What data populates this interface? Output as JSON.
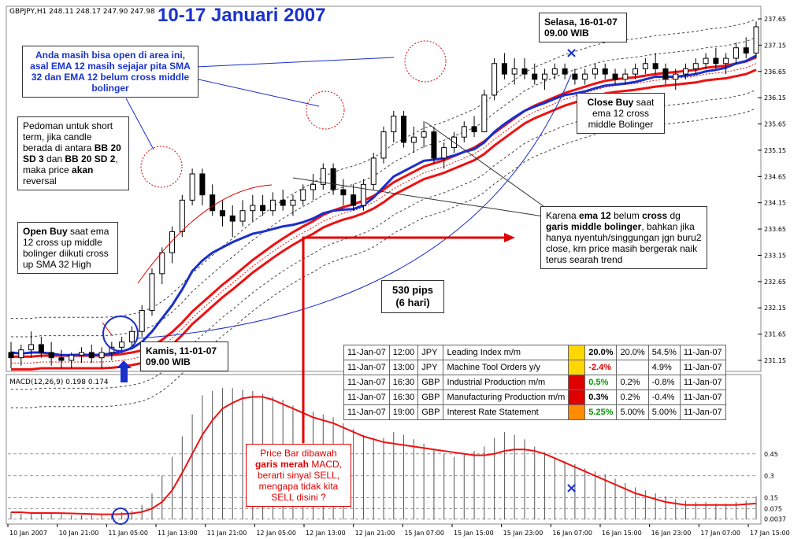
{
  "chart_data": [
    {
      "type": "candlestick",
      "symbol_header": "GBPJPY,H1  248.11 248.17 247.90 247.98",
      "title": "10-17 Januari 2007",
      "price_ticks": [
        "237.65",
        "237.15",
        "236.65",
        "236.15",
        "235.65",
        "235.15",
        "234.65",
        "234.15",
        "233.65",
        "233.15",
        "232.65",
        "232.15",
        "231.65",
        "231.15"
      ],
      "ylim": [
        231.0,
        237.8
      ],
      "candles": [
        {
          "o": 231.3,
          "h": 231.5,
          "l": 231.0,
          "c": 231.2
        },
        {
          "o": 231.2,
          "h": 231.45,
          "l": 231.05,
          "c": 231.35
        },
        {
          "o": 231.35,
          "h": 231.7,
          "l": 231.2,
          "c": 231.45
        },
        {
          "o": 231.45,
          "h": 231.6,
          "l": 231.2,
          "c": 231.3
        },
        {
          "o": 231.3,
          "h": 231.5,
          "l": 231.05,
          "c": 231.2
        },
        {
          "o": 231.2,
          "h": 231.35,
          "l": 231.0,
          "c": 231.15
        },
        {
          "o": 231.15,
          "h": 231.3,
          "l": 231.0,
          "c": 231.25
        },
        {
          "o": 231.25,
          "h": 231.4,
          "l": 231.1,
          "c": 231.3
        },
        {
          "o": 231.3,
          "h": 231.45,
          "l": 231.1,
          "c": 231.2
        },
        {
          "o": 231.2,
          "h": 231.4,
          "l": 231.0,
          "c": 231.3
        },
        {
          "o": 231.3,
          "h": 231.5,
          "l": 231.15,
          "c": 231.4
        },
        {
          "o": 231.4,
          "h": 231.6,
          "l": 231.3,
          "c": 231.5
        },
        {
          "o": 231.5,
          "h": 231.8,
          "l": 231.4,
          "c": 231.7
        },
        {
          "o": 231.7,
          "h": 232.2,
          "l": 231.6,
          "c": 232.1
        },
        {
          "o": 232.1,
          "h": 232.9,
          "l": 232.0,
          "c": 232.8
        },
        {
          "o": 232.8,
          "h": 233.3,
          "l": 232.6,
          "c": 233.2
        },
        {
          "o": 233.2,
          "h": 233.7,
          "l": 233.0,
          "c": 233.6
        },
        {
          "o": 233.6,
          "h": 234.3,
          "l": 233.5,
          "c": 234.2
        },
        {
          "o": 234.2,
          "h": 234.8,
          "l": 234.1,
          "c": 234.7
        },
        {
          "o": 234.7,
          "h": 234.8,
          "l": 234.1,
          "c": 234.3
        },
        {
          "o": 234.3,
          "h": 234.5,
          "l": 233.9,
          "c": 234.0
        },
        {
          "o": 234.0,
          "h": 234.2,
          "l": 233.7,
          "c": 233.9
        },
        {
          "o": 233.9,
          "h": 234.1,
          "l": 233.5,
          "c": 233.8
        },
        {
          "o": 233.8,
          "h": 234.2,
          "l": 233.7,
          "c": 234.0
        },
        {
          "o": 234.0,
          "h": 234.3,
          "l": 233.8,
          "c": 234.1
        },
        {
          "o": 234.1,
          "h": 234.3,
          "l": 233.9,
          "c": 234.0
        },
        {
          "o": 234.0,
          "h": 234.35,
          "l": 233.9,
          "c": 234.2
        },
        {
          "o": 234.2,
          "h": 234.4,
          "l": 234.0,
          "c": 234.1
        },
        {
          "o": 234.1,
          "h": 234.3,
          "l": 233.9,
          "c": 234.2
        },
        {
          "o": 234.2,
          "h": 234.5,
          "l": 234.1,
          "c": 234.4
        },
        {
          "o": 234.4,
          "h": 234.7,
          "l": 234.2,
          "c": 234.5
        },
        {
          "o": 234.5,
          "h": 234.9,
          "l": 234.4,
          "c": 234.8
        },
        {
          "o": 234.8,
          "h": 234.9,
          "l": 234.3,
          "c": 234.4
        },
        {
          "o": 234.4,
          "h": 234.6,
          "l": 234.1,
          "c": 234.3
        },
        {
          "o": 234.3,
          "h": 234.5,
          "l": 234.0,
          "c": 234.1
        },
        {
          "o": 234.1,
          "h": 234.6,
          "l": 234.0,
          "c": 234.5
        },
        {
          "o": 234.5,
          "h": 235.1,
          "l": 234.4,
          "c": 235.0
        },
        {
          "o": 235.0,
          "h": 235.6,
          "l": 234.9,
          "c": 235.5
        },
        {
          "o": 235.5,
          "h": 235.9,
          "l": 235.3,
          "c": 235.8
        },
        {
          "o": 235.8,
          "h": 235.9,
          "l": 235.2,
          "c": 235.3
        },
        {
          "o": 235.3,
          "h": 235.6,
          "l": 235.1,
          "c": 235.4
        },
        {
          "o": 235.4,
          "h": 235.7,
          "l": 235.2,
          "c": 235.5
        },
        {
          "o": 235.5,
          "h": 235.6,
          "l": 234.9,
          "c": 235.0
        },
        {
          "o": 235.0,
          "h": 235.3,
          "l": 234.8,
          "c": 235.2
        },
        {
          "o": 235.2,
          "h": 235.5,
          "l": 235.1,
          "c": 235.4
        },
        {
          "o": 235.4,
          "h": 235.7,
          "l": 235.3,
          "c": 235.6
        },
        {
          "o": 235.6,
          "h": 235.8,
          "l": 235.4,
          "c": 235.5
        },
        {
          "o": 235.5,
          "h": 236.3,
          "l": 235.5,
          "c": 236.2
        },
        {
          "o": 236.2,
          "h": 236.9,
          "l": 236.1,
          "c": 236.8
        },
        {
          "o": 236.8,
          "h": 237.0,
          "l": 236.5,
          "c": 236.6
        },
        {
          "o": 236.6,
          "h": 236.9,
          "l": 236.4,
          "c": 236.7
        },
        {
          "o": 236.7,
          "h": 236.9,
          "l": 236.5,
          "c": 236.6
        },
        {
          "o": 236.6,
          "h": 236.8,
          "l": 236.4,
          "c": 236.5
        },
        {
          "o": 236.5,
          "h": 236.7,
          "l": 236.3,
          "c": 236.6
        },
        {
          "o": 236.6,
          "h": 236.8,
          "l": 236.5,
          "c": 236.7
        },
        {
          "o": 236.7,
          "h": 236.8,
          "l": 236.5,
          "c": 236.6
        },
        {
          "o": 236.6,
          "h": 236.7,
          "l": 236.4,
          "c": 236.5
        },
        {
          "o": 236.5,
          "h": 236.7,
          "l": 236.4,
          "c": 236.6
        },
        {
          "o": 236.6,
          "h": 236.8,
          "l": 236.5,
          "c": 236.7
        },
        {
          "o": 236.7,
          "h": 236.8,
          "l": 236.5,
          "c": 236.6
        },
        {
          "o": 236.6,
          "h": 236.7,
          "l": 236.4,
          "c": 236.5
        },
        {
          "o": 236.5,
          "h": 236.7,
          "l": 236.4,
          "c": 236.6
        },
        {
          "o": 236.6,
          "h": 236.8,
          "l": 236.5,
          "c": 236.7
        },
        {
          "o": 236.7,
          "h": 236.9,
          "l": 236.6,
          "c": 236.8
        },
        {
          "o": 236.8,
          "h": 237.0,
          "l": 236.6,
          "c": 236.7
        },
        {
          "o": 236.7,
          "h": 236.8,
          "l": 236.4,
          "c": 236.5
        },
        {
          "o": 236.5,
          "h": 236.7,
          "l": 236.3,
          "c": 236.6
        },
        {
          "o": 236.6,
          "h": 236.8,
          "l": 236.5,
          "c": 236.7
        },
        {
          "o": 236.7,
          "h": 236.9,
          "l": 236.6,
          "c": 236.8
        },
        {
          "o": 236.8,
          "h": 237.0,
          "l": 236.7,
          "c": 236.9
        },
        {
          "o": 236.9,
          "h": 237.1,
          "l": 236.7,
          "c": 236.8
        },
        {
          "o": 236.8,
          "h": 237.0,
          "l": 236.6,
          "c": 236.9
        },
        {
          "o": 236.9,
          "h": 237.2,
          "l": 236.8,
          "c": 237.1
        },
        {
          "o": 237.1,
          "h": 237.3,
          "l": 236.9,
          "c": 237.0
        },
        {
          "o": 237.0,
          "h": 237.6,
          "l": 236.9,
          "c": 237.5
        }
      ],
      "ema12": [
        231.3,
        231.28,
        231.3,
        231.3,
        231.28,
        231.25,
        231.25,
        231.26,
        231.25,
        231.26,
        231.28,
        231.32,
        231.38,
        231.5,
        231.7,
        231.95,
        232.2,
        232.5,
        232.85,
        233.05,
        233.2,
        233.3,
        233.4,
        233.48,
        233.56,
        233.6,
        233.65,
        233.7,
        233.73,
        233.78,
        233.85,
        233.95,
        234.0,
        234.02,
        234.03,
        234.1,
        234.25,
        234.45,
        234.65,
        234.75,
        234.85,
        234.95,
        234.97,
        235.0,
        235.05,
        235.12,
        235.17,
        235.3,
        235.5,
        235.65,
        235.78,
        235.9,
        235.98,
        236.05,
        236.13,
        236.2,
        236.23,
        236.27,
        236.33,
        236.38,
        236.4,
        236.42,
        236.45,
        236.5,
        236.55,
        236.55,
        236.55,
        236.57,
        236.6,
        236.65,
        236.68,
        236.72,
        236.8,
        236.85,
        236.95
      ],
      "bb_mid": [
        231.1,
        231.1,
        231.1,
        231.12,
        231.12,
        231.12,
        231.12,
        231.12,
        231.12,
        231.12,
        231.13,
        231.15,
        231.18,
        231.22,
        231.3,
        231.42,
        231.57,
        231.75,
        231.96,
        232.13,
        232.3,
        232.47,
        232.62,
        232.78,
        232.94,
        233.08,
        233.22,
        233.35,
        233.47,
        233.58,
        233.68,
        233.8,
        233.88,
        233.95,
        234.0,
        234.07,
        234.16,
        234.28,
        234.42,
        234.52,
        234.62,
        234.72,
        234.78,
        234.84,
        234.92,
        235.0,
        235.08,
        235.2,
        235.36,
        235.5,
        235.64,
        235.78,
        235.88,
        235.96,
        236.04,
        236.12,
        236.18,
        236.24,
        236.3,
        236.35,
        236.38,
        236.4,
        236.42,
        236.45,
        236.48,
        236.5,
        236.52,
        236.54,
        236.56,
        236.6,
        236.62,
        236.64,
        236.68,
        236.72,
        236.8
      ]
    },
    {
      "type": "bar+line",
      "indicator_header": "MACD(12,26,9) 0.198 0.174",
      "macd_ticks": [
        "0.45",
        "0.3",
        "0.15",
        "0.075",
        "0.0037"
      ],
      "ylim": [
        -0.02,
        0.95
      ],
      "histogram": [
        0.05,
        0.04,
        0.04,
        0.05,
        0.04,
        0.04,
        0.03,
        0.03,
        0.03,
        0.03,
        0.04,
        0.05,
        0.06,
        0.1,
        0.18,
        0.3,
        0.43,
        0.57,
        0.72,
        0.85,
        0.88,
        0.9,
        0.9,
        0.89,
        0.88,
        0.86,
        0.84,
        0.82,
        0.78,
        0.76,
        0.74,
        0.72,
        0.7,
        0.66,
        0.62,
        0.58,
        0.56,
        0.56,
        0.6,
        0.58,
        0.55,
        0.52,
        0.48,
        0.45,
        0.43,
        0.45,
        0.47,
        0.5,
        0.56,
        0.6,
        0.58,
        0.55,
        0.5,
        0.46,
        0.42,
        0.4,
        0.38,
        0.35,
        0.33,
        0.31,
        0.28,
        0.25,
        0.22,
        0.2,
        0.18,
        0.16,
        0.14,
        0.13,
        0.12,
        0.12,
        0.11,
        0.11,
        0.12,
        0.13,
        0.16
      ],
      "signal": [
        0.05,
        0.05,
        0.045,
        0.045,
        0.045,
        0.044,
        0.042,
        0.04,
        0.038,
        0.036,
        0.036,
        0.038,
        0.042,
        0.052,
        0.075,
        0.12,
        0.2,
        0.32,
        0.45,
        0.58,
        0.68,
        0.76,
        0.8,
        0.83,
        0.84,
        0.84,
        0.82,
        0.79,
        0.76,
        0.73,
        0.7,
        0.68,
        0.66,
        0.63,
        0.6,
        0.57,
        0.55,
        0.53,
        0.52,
        0.51,
        0.5,
        0.49,
        0.48,
        0.47,
        0.46,
        0.45,
        0.44,
        0.44,
        0.45,
        0.47,
        0.48,
        0.48,
        0.47,
        0.45,
        0.42,
        0.39,
        0.36,
        0.33,
        0.3,
        0.27,
        0.24,
        0.21,
        0.18,
        0.16,
        0.14,
        0.12,
        0.11,
        0.1,
        0.1,
        0.1,
        0.1,
        0.1,
        0.1,
        0.105,
        0.11
      ]
    }
  ],
  "time_labels": [
    "10 Jan 2007",
    "10 Jan 21:00",
    "11 Jan 05:00",
    "11 Jan 13:00",
    "11 Jan 21:00",
    "12 Jan 05:00",
    "12 Jan 13:00",
    "12 Jan 21:00",
    "15 Jan 07:00",
    "15 Jan 15:00",
    "15 Jan 23:00",
    "16 Jan 07:00",
    "16 Jan 15:00",
    "16 Jan 23:00",
    "17 Jan 07:00",
    "17 Jan 15:00"
  ],
  "annotations": {
    "area_note": "Anda masih bisa open di area ini, asal EMA 12 masih sejajar pita SMA 32 dan EMA 12 belum cross middle bolinger",
    "short_term_a": "Pedoman untuk short term, jika candle berada di antara ",
    "short_term_b": "BB 20 SD 3",
    "short_term_c": " dan ",
    "short_term_d": "BB 20 SD 2",
    "short_term_e": ", maka price ",
    "short_term_f": "akan",
    "short_term_g": " reversal",
    "open_buy_bold": "Open Buy",
    "open_buy_rest": " saat ema 12 cross up middle bolinger diikuti cross up SMA 32 High",
    "kamis_label": "Kamis, 11-01-07",
    "kamis_time": "09.00 WIB",
    "selasa_label": "Selasa, 16-01-07",
    "selasa_time": "09.00 WIB",
    "close_buy_bold": "Close Buy",
    "close_buy_rest": " saat ema 12 cross middle Bolinger",
    "karena_a": "Karena ",
    "karena_b": "ema 12",
    "karena_c": " belum ",
    "karena_d": "cross",
    "karena_e": " dg ",
    "karena_f": "garis middle bolinger",
    "karena_g": ", bahkan jika hanya nyentuh/singgungan jgn buru2 close, krn price masih bergerak naik terus searah trend",
    "pips_line1": "530 pips",
    "pips_line2": "(6 hari)",
    "price_bar_a": "Price Bar dibawah ",
    "price_bar_b": "garis merah",
    "price_bar_c": " MACD, berarti sinyal SELL, mengapa tidak kita SELL disini ?"
  },
  "events": [
    {
      "date": "11-Jan-07",
      "time": "12:00",
      "cur": "JPY",
      "name": "Leading Index m/m",
      "actual": "20.0%",
      "forecast": "20.0%",
      "previous": "54.5%",
      "date2": "11-Jan-07",
      "color": "#ffd700",
      "actual_color": "#000000"
    },
    {
      "date": "11-Jan-07",
      "time": "13:00",
      "cur": "JPY",
      "name": "Machine Tool Orders y/y",
      "actual": "-2.4%",
      "forecast": "",
      "previous": "4.9%",
      "date2": "11-Jan-07",
      "color": "#ffd700",
      "actual_color": "#e00000"
    },
    {
      "date": "11-Jan-07",
      "time": "16:30",
      "cur": "GBP",
      "name": "Industrial Production m/m",
      "actual": "0.5%",
      "forecast": "0.2%",
      "previous": "-0.8%",
      "date2": "11-Jan-07",
      "color": "#e00000",
      "actual_color": "#009900"
    },
    {
      "date": "11-Jan-07",
      "time": "16:30",
      "cur": "GBP",
      "name": "Manufacturing Production m/m",
      "actual": "0.3%",
      "forecast": "0.2%",
      "previous": "-0.4%",
      "date2": "11-Jan-07",
      "color": "#e00000",
      "actual_color": "#000000"
    },
    {
      "date": "11-Jan-07",
      "time": "19:00",
      "cur": "GBP",
      "name": "Interest Rate Statement",
      "actual": "5.25%",
      "forecast": "5.00%",
      "previous": "5.00%",
      "date2": "11-Jan-07",
      "color": "#ff8c00",
      "actual_color": "#009900"
    }
  ],
  "colors": {
    "ema": "#1a2fcc",
    "sma_band": "#ee1111",
    "bb": "#444444",
    "macd_signal": "#ee1111",
    "annotation_blue": "#1a33cc"
  }
}
